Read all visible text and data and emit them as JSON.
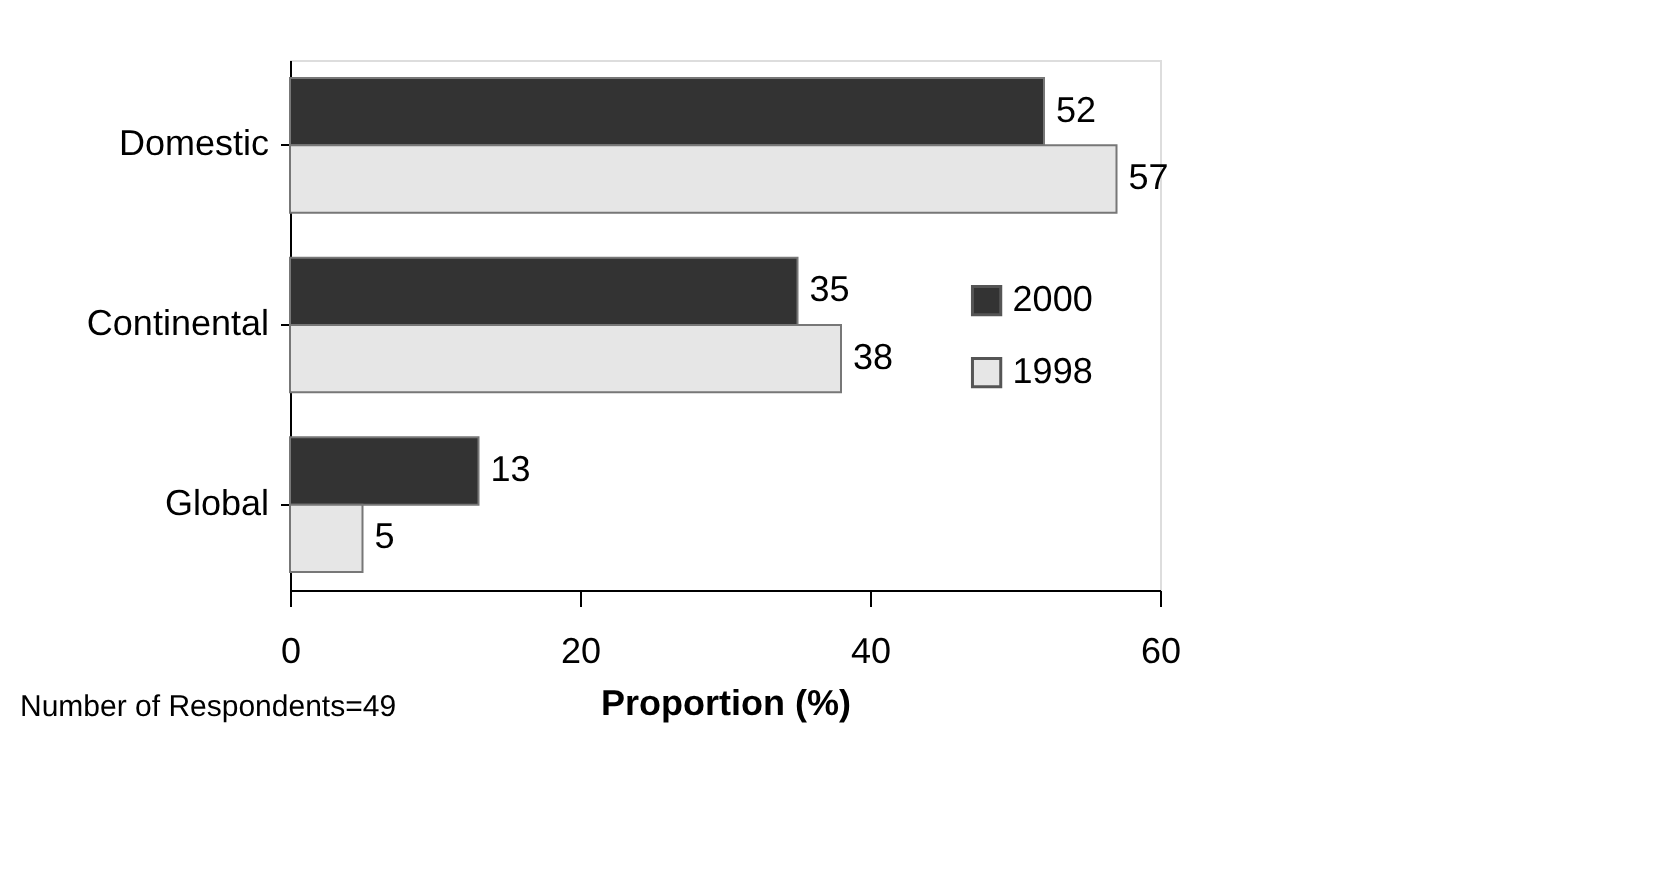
{
  "chart_data": {
    "type": "bar",
    "orientation": "horizontal",
    "xlabel": "Proportion (%)",
    "categories": [
      "Domestic",
      "Continental",
      "Global"
    ],
    "series": [
      {
        "name": "2000",
        "color": "#333333",
        "values": [
          52,
          35,
          13
        ]
      },
      {
        "name": "1998",
        "color": "#e6e6e6",
        "values": [
          57,
          38,
          5
        ]
      }
    ],
    "xlim": [
      0,
      60
    ],
    "xticks": [
      0,
      20,
      40,
      60
    ],
    "grid": false,
    "legend": "right",
    "data_labels": true,
    "annotations": [
      "Number of Respondents=49"
    ]
  }
}
